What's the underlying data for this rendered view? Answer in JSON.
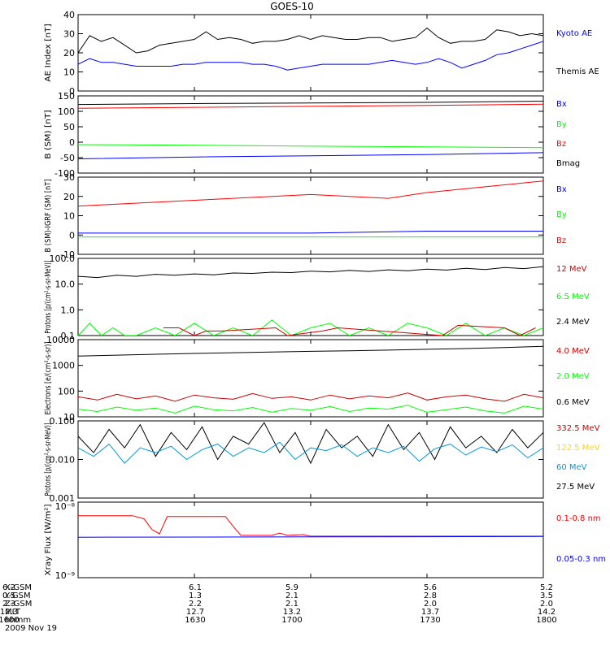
{
  "title": "GOES-10",
  "chart_data": [
    {
      "type": "line",
      "ylabel": "AE Index [nT]",
      "ylim": [
        0,
        40
      ],
      "yticks": [
        0,
        10,
        20,
        30,
        40
      ],
      "legend": [
        {
          "name": "Kyoto AE",
          "color": "#0000ff"
        },
        {
          "name": "Themis AE",
          "color": "#000000"
        }
      ],
      "series": [
        {
          "name": "Kyoto AE",
          "color": "#000000",
          "x": [
            1600,
            1603,
            1606,
            1609,
            1612,
            1615,
            1618,
            1621,
            1624,
            1627,
            1630,
            1633,
            1636,
            1639,
            1642,
            1645,
            1648,
            1651,
            1654,
            1657,
            1700,
            1703,
            1706,
            1709,
            1712,
            1715,
            1718,
            1721,
            1724,
            1727,
            1730,
            1733,
            1736,
            1739,
            1742,
            1745,
            1748,
            1751,
            1754,
            1757,
            1800
          ],
          "y": [
            20,
            29,
            26,
            28,
            24,
            20,
            21,
            24,
            25,
            26,
            27,
            31,
            27,
            28,
            27,
            25,
            26,
            26,
            27,
            29,
            27,
            29,
            28,
            27,
            27,
            28,
            28,
            26,
            27,
            28,
            33,
            28,
            25,
            26,
            26,
            27,
            32,
            31,
            29,
            30,
            29
          ]
        },
        {
          "name": "Themis AE",
          "color": "#0000ff",
          "x": [
            1600,
            1603,
            1606,
            1609,
            1612,
            1615,
            1618,
            1621,
            1624,
            1627,
            1630,
            1633,
            1636,
            1639,
            1642,
            1645,
            1648,
            1651,
            1654,
            1657,
            1700,
            1703,
            1706,
            1709,
            1712,
            1715,
            1718,
            1721,
            1724,
            1727,
            1730,
            1733,
            1736,
            1739,
            1742,
            1745,
            1748,
            1751,
            1754,
            1757,
            1800
          ],
          "y": [
            14,
            17,
            15,
            15,
            14,
            13,
            13,
            13,
            13,
            14,
            14,
            15,
            15,
            15,
            15,
            14,
            14,
            13,
            11,
            12,
            13,
            14,
            14,
            14,
            14,
            14,
            15,
            16,
            15,
            14,
            15,
            17,
            15,
            12,
            14,
            16,
            19,
            20,
            22,
            24,
            26
          ]
        }
      ]
    },
    {
      "type": "line",
      "ylabel": "B (SM) [nT]",
      "ylim": [
        -100,
        150
      ],
      "yticks": [
        -100,
        -50,
        0,
        50,
        100,
        150
      ],
      "legend": [
        {
          "name": "Bx",
          "color": "#0000ff"
        },
        {
          "name": "By",
          "color": "#00ff00"
        },
        {
          "name": "Bz",
          "color": "#ff0000"
        },
        {
          "name": "Bmag",
          "color": "#000000"
        }
      ],
      "series": [
        {
          "name": "Bx",
          "color": "#0000ff",
          "x": [
            1600,
            1630,
            1700,
            1730,
            1800
          ],
          "y": [
            -54,
            -48,
            -44,
            -40,
            -34
          ]
        },
        {
          "name": "By",
          "color": "#00ff00",
          "x": [
            1600,
            1630,
            1700,
            1730,
            1800
          ],
          "y": [
            -8,
            -10,
            -13,
            -15,
            -18
          ]
        },
        {
          "name": "Bz",
          "color": "#ff0000",
          "x": [
            1600,
            1630,
            1700,
            1730,
            1800
          ],
          "y": [
            110,
            113,
            116,
            119,
            123
          ]
        },
        {
          "name": "Bmag",
          "color": "#000000",
          "x": [
            1600,
            1630,
            1700,
            1730,
            1800
          ],
          "y": [
            122,
            125,
            127,
            129,
            133
          ]
        }
      ]
    },
    {
      "type": "line",
      "ylabel": "B (SM)-IGRF (SM) [nT]",
      "ylim": [
        -10,
        30
      ],
      "yticks": [
        -10,
        0,
        10,
        20,
        30
      ],
      "legend": [
        {
          "name": "Bx",
          "color": "#0000ff"
        },
        {
          "name": "By",
          "color": "#00ff00"
        },
        {
          "name": "Bz",
          "color": "#ff0000"
        }
      ],
      "series": [
        {
          "name": "Bx",
          "color": "#0000ff",
          "x": [
            1600,
            1630,
            1700,
            1730,
            1800
          ],
          "y": [
            1,
            1,
            1,
            2,
            2
          ]
        },
        {
          "name": "By",
          "color": "#00ff00",
          "x": [
            1600,
            1630,
            1700,
            1730,
            1800
          ],
          "y": [
            -1,
            -1,
            -1,
            -1,
            -1
          ]
        },
        {
          "name": "Bz",
          "color": "#ff0000",
          "x": [
            1600,
            1610,
            1620,
            1630,
            1640,
            1650,
            1700,
            1710,
            1720,
            1730,
            1740,
            1750,
            1800
          ],
          "y": [
            15,
            16,
            17,
            18,
            19,
            20,
            21,
            20,
            19,
            22,
            24,
            26,
            28
          ]
        }
      ]
    },
    {
      "type": "line",
      "ylabel": "Protons [p/(cm²-s-sr-MeV)]",
      "yscale": "log",
      "ylim": [
        0.1,
        100
      ],
      "yticks": [
        0.1,
        1.0,
        10.0,
        100.0
      ],
      "yticklabels": [
        "0.1",
        "1.0",
        "10.0",
        "100.0"
      ],
      "legend": [
        {
          "name": "12 MeV",
          "color": "#cc0000"
        },
        {
          "name": "6.5 MeV",
          "color": "#00ff00"
        },
        {
          "name": "2.4 MeV",
          "color": "#000000"
        }
      ],
      "series": [
        {
          "name": "2.4 MeV",
          "color": "#000000",
          "x": [
            1600,
            1605,
            1610,
            1615,
            1620,
            1625,
            1630,
            1635,
            1640,
            1645,
            1650,
            1655,
            1700,
            1705,
            1710,
            1715,
            1720,
            1725,
            1730,
            1735,
            1740,
            1745,
            1750,
            1755,
            1800
          ],
          "y": [
            20,
            18,
            22,
            20,
            24,
            22,
            25,
            23,
            27,
            26,
            29,
            28,
            32,
            30,
            34,
            31,
            36,
            33,
            38,
            35,
            41,
            37,
            44,
            40,
            48
          ]
        },
        {
          "name": "6.5 MeV",
          "color": "#00ff00",
          "x": [
            1600,
            1603,
            1606,
            1609,
            1612,
            1615,
            1620,
            1625,
            1630,
            1635,
            1640,
            1645,
            1650,
            1655,
            1700,
            1705,
            1710,
            1715,
            1720,
            1725,
            1730,
            1735,
            1740,
            1745,
            1750,
            1755,
            1800
          ],
          "y": [
            0.1,
            0.3,
            0.1,
            0.2,
            0.1,
            0.1,
            0.2,
            0.1,
            0.3,
            0.1,
            0.2,
            0.1,
            0.4,
            0.1,
            0.2,
            0.3,
            0.1,
            0.2,
            0.1,
            0.3,
            0.2,
            0.1,
            0.3,
            0.1,
            0.2,
            0.1,
            0.2
          ]
        },
        {
          "name": "12 MeV",
          "color": "#cc0000",
          "x": [
            1622,
            1626,
            1630,
            1633,
            1637,
            1651,
            1654,
            1703,
            1707,
            1734,
            1738,
            1750,
            1754,
            1758
          ],
          "y": [
            0.2,
            0.2,
            0.1,
            0.15,
            0.15,
            0.2,
            0.1,
            0.15,
            0.2,
            0.1,
            0.25,
            0.2,
            0.1,
            0.2
          ]
        }
      ]
    },
    {
      "type": "line",
      "ylabel": "Electrons [e/(cm²-s-sr)]",
      "yscale": "log",
      "ylim": [
        10,
        10000
      ],
      "yticks": [
        10,
        100,
        1000,
        10000
      ],
      "yticklabels": [
        "10",
        "100",
        "1000",
        "10000"
      ],
      "legend": [
        {
          "name": "4.0 MeV",
          "color": "#cc0000"
        },
        {
          "name": "2.0 MeV",
          "color": "#00ff00"
        },
        {
          "name": "0.6 MeV",
          "color": "#000000"
        }
      ],
      "series": [
        {
          "name": "0.6 MeV",
          "color": "#000000",
          "x": [
            1600,
            1610,
            1620,
            1630,
            1640,
            1650,
            1700,
            1710,
            1720,
            1730,
            1740,
            1750,
            1800
          ],
          "y": [
            2300,
            2500,
            2700,
            2900,
            3100,
            3300,
            3500,
            3700,
            3900,
            4200,
            4500,
            4900,
            5500
          ]
        },
        {
          "name": "4.0 MeV",
          "color": "#cc0000",
          "x": [
            1600,
            1605,
            1610,
            1615,
            1620,
            1625,
            1630,
            1635,
            1640,
            1645,
            1650,
            1655,
            1700,
            1705,
            1710,
            1715,
            1720,
            1725,
            1730,
            1735,
            1740,
            1745,
            1750,
            1755,
            1800
          ],
          "y": [
            60,
            45,
            75,
            50,
            65,
            40,
            70,
            55,
            48,
            80,
            52,
            60,
            45,
            70,
            50,
            65,
            55,
            85,
            45,
            60,
            70,
            50,
            40,
            75,
            55
          ]
        },
        {
          "name": "2.0 MeV",
          "color": "#00ff00",
          "x": [
            1600,
            1605,
            1610,
            1615,
            1620,
            1625,
            1630,
            1635,
            1640,
            1645,
            1650,
            1655,
            1700,
            1705,
            1710,
            1715,
            1720,
            1725,
            1730,
            1735,
            1740,
            1745,
            1750,
            1755,
            1800
          ],
          "y": [
            20,
            16,
            24,
            18,
            22,
            14,
            26,
            19,
            17,
            23,
            15,
            21,
            18,
            25,
            16,
            22,
            20,
            28,
            15,
            19,
            24,
            17,
            14,
            26,
            20
          ]
        }
      ]
    },
    {
      "type": "line",
      "ylabel": "Protons [p/(cm²-s-sr-MeV)]",
      "yscale": "log",
      "ylim": [
        0.001,
        0.1
      ],
      "yticks": [
        0.001,
        0.01,
        0.1
      ],
      "yticklabels": [
        "0.001",
        "0.010",
        "0.100"
      ],
      "legend": [
        {
          "name": "332.5 MeV",
          "color": "#cc0000"
        },
        {
          "name": "122.5 MeV",
          "color": "#ffd700"
        },
        {
          "name": "60 MeV",
          "color": "#0099dd"
        },
        {
          "name": "27.5 MeV",
          "color": "#000000"
        }
      ],
      "series": [
        {
          "name": "27.5 MeV",
          "color": "#000000",
          "x": [
            1600,
            1604,
            1608,
            1612,
            1616,
            1620,
            1624,
            1628,
            1632,
            1636,
            1640,
            1644,
            1648,
            1652,
            1656,
            1700,
            1704,
            1708,
            1712,
            1716,
            1720,
            1724,
            1728,
            1732,
            1736,
            1740,
            1744,
            1748,
            1752,
            1756,
            1800
          ],
          "y": [
            0.04,
            0.015,
            0.06,
            0.02,
            0.08,
            0.012,
            0.05,
            0.018,
            0.07,
            0.01,
            0.04,
            0.025,
            0.09,
            0.015,
            0.05,
            0.008,
            0.06,
            0.02,
            0.04,
            0.012,
            0.08,
            0.018,
            0.05,
            0.01,
            0.07,
            0.02,
            0.04,
            0.015,
            0.06,
            0.02,
            0.05
          ]
        },
        {
          "name": "60 MeV",
          "color": "#0099dd",
          "x": [
            1600,
            1604,
            1608,
            1612,
            1616,
            1620,
            1624,
            1628,
            1632,
            1636,
            1640,
            1644,
            1648,
            1652,
            1656,
            1700,
            1704,
            1708,
            1712,
            1716,
            1720,
            1724,
            1728,
            1732,
            1736,
            1740,
            1744,
            1748,
            1752,
            1756,
            1800
          ],
          "y": [
            0.02,
            0.012,
            0.025,
            0.008,
            0.02,
            0.015,
            0.022,
            0.01,
            0.018,
            0.025,
            0.012,
            0.02,
            0.015,
            0.028,
            0.01,
            0.02,
            0.017,
            0.024,
            0.012,
            0.02,
            0.015,
            0.022,
            0.009,
            0.019,
            0.025,
            0.013,
            0.021,
            0.016,
            0.024,
            0.011,
            0.02
          ]
        }
      ]
    },
    {
      "type": "line",
      "ylabel": "Xray Flux [W/m²]",
      "yscale": "log",
      "yticklabels": [
        "10⁻⁸",
        "10⁻⁹"
      ],
      "legend": [
        {
          "name": "0.1-0.8 nm",
          "color": "#ff0000"
        },
        {
          "name": "0.05-0.3 nm",
          "color": "#0000ff"
        }
      ],
      "series": [
        {
          "name": "0.1-0.8 nm",
          "color": "#ff0000",
          "x": [
            1600,
            1614,
            1617,
            1619,
            1621,
            1623,
            1638,
            1640,
            1642,
            1650,
            1652,
            1654,
            1658,
            1700,
            1720,
            1740,
            1800
          ],
          "y": [
            0.82,
            0.82,
            0.78,
            0.64,
            0.58,
            0.81,
            0.81,
            0.68,
            0.56,
            0.56,
            0.59,
            0.56,
            0.57,
            0.55,
            0.55,
            0.55,
            0.55
          ]
        },
        {
          "name": "0.05-0.3 nm",
          "color": "#0000ff",
          "x": [
            1600,
            1700,
            1800
          ],
          "y": [
            0.535,
            0.54,
            0.545
          ]
        }
      ]
    }
  ],
  "xaxis": {
    "rows": [
      {
        "label": "X-GSM",
        "values": [
          "6.2",
          "6.1",
          "5.9",
          "5.6",
          "5.2"
        ]
      },
      {
        "label": "Y-GSM",
        "values": [
          "0.5",
          "1.3",
          "2.1",
          "2.8",
          "3.5"
        ]
      },
      {
        "label": "Z-GSM",
        "values": [
          "2.3",
          "2.2",
          "2.1",
          "2.0",
          "2.0"
        ]
      },
      {
        "label": "MLT",
        "values": [
          "12.3",
          "12.7",
          "13.2",
          "13.7",
          "14.2"
        ]
      },
      {
        "label": "hhmm",
        "values": [
          "1600",
          "1630",
          "1700",
          "1730",
          "1800"
        ]
      }
    ],
    "date": "2009 Nov 19"
  }
}
